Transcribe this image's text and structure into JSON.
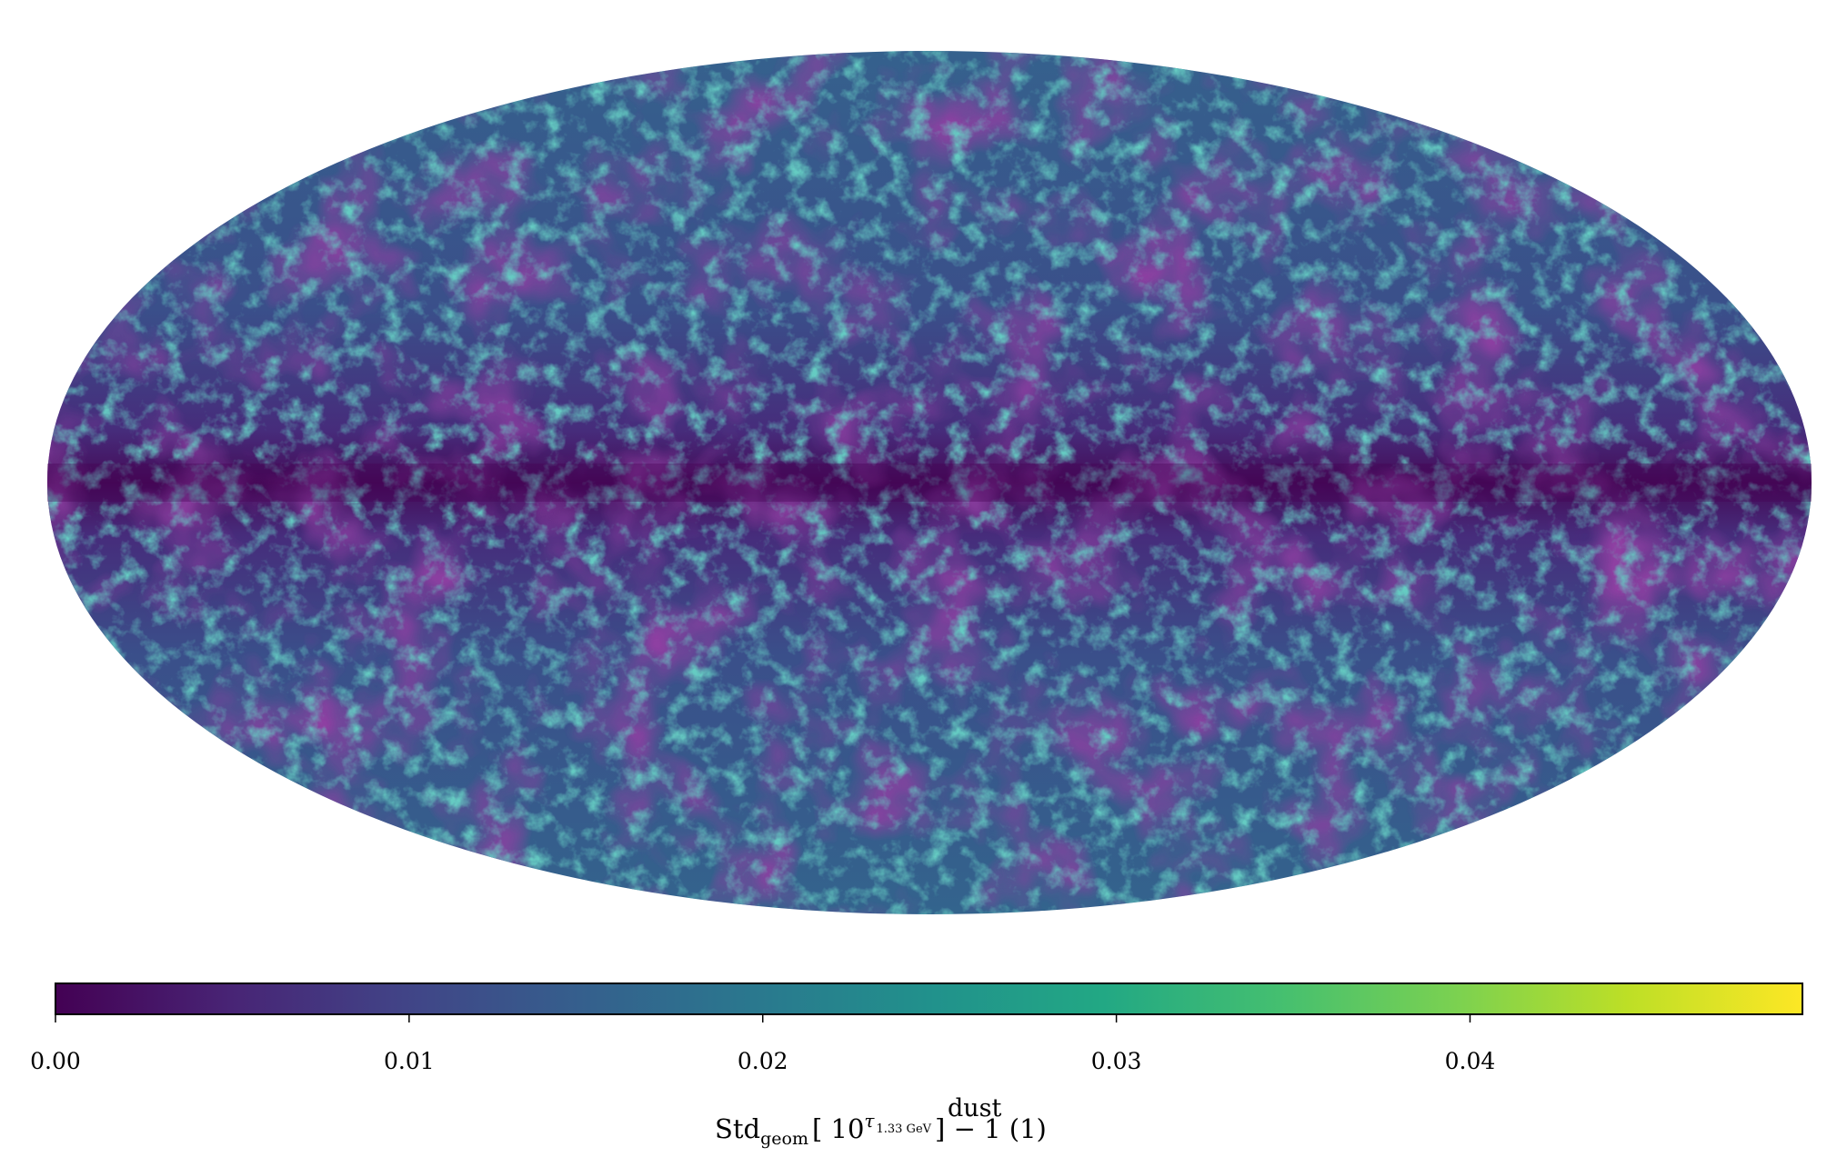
{
  "chart_data": {
    "type": "map",
    "projection": "mollweide",
    "colormap": "viridis",
    "clim": [
      0,
      0.0494
    ],
    "colorbar_ticks": [
      {
        "value": 0,
        "label": "0.00"
      },
      {
        "value": 0.01,
        "label": "0.01"
      },
      {
        "value": 0.02,
        "label": "0.02"
      },
      {
        "value": 0.03,
        "label": "0.03"
      },
      {
        "value": 0.04,
        "label": "0.04"
      }
    ],
    "colorbar_label": {
      "main": "Std",
      "subscript": "geom",
      "open": "[ 10",
      "exponent": "τ",
      "exponent_super": "dust",
      "exponent_sub": "1.33 GeV",
      "close": "] − 1  (1)"
    }
  }
}
